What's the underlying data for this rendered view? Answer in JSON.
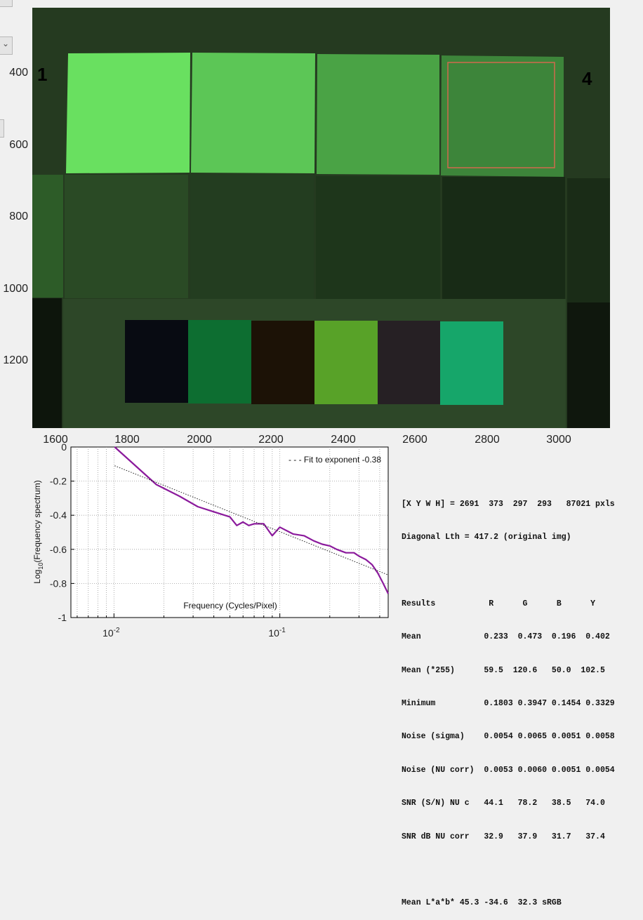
{
  "image_panel": {
    "y_ticks": [
      "400",
      "600",
      "800",
      "1000",
      "1200"
    ],
    "x_ticks": [
      "1600",
      "1800",
      "2000",
      "2200",
      "2400",
      "2600",
      "2800",
      "3000"
    ],
    "patch_label_left": "1",
    "patch_label_right": "4"
  },
  "spectrum_plot": {
    "ylabel_main": "Log",
    "ylabel_sub": "10",
    "ylabel_rest": "(Frequency spectrum)",
    "xlabel": "Frequency (Cycles/Pixel)",
    "legend": "- - - Fit to exponent -0.38",
    "y_ticks": [
      "0",
      "-0.2",
      "-0.4",
      "-0.6",
      "-0.8",
      "-1"
    ],
    "x_tick_base": "10",
    "x_tick_exps": [
      "-2",
      "-1"
    ],
    "line_color": "#8b1a9c"
  },
  "chart_data": {
    "type": "line",
    "xscale": "log",
    "xlim": [
      0.0055,
      0.45
    ],
    "ylim": [
      -1,
      0
    ],
    "xlabel": "Frequency (Cycles/Pixel)",
    "ylabel": "Log10(Frequency spectrum)",
    "grid": true,
    "legend": "top-right",
    "series": [
      {
        "x": [
          0.0101,
          0.018,
          0.025,
          0.032,
          0.04,
          0.05,
          0.055,
          0.06,
          0.065,
          0.07,
          0.08,
          0.09,
          0.1,
          0.12,
          0.14,
          0.16,
          0.18,
          0.2,
          0.22,
          0.25,
          0.28,
          0.3,
          0.33,
          0.36,
          0.39,
          0.42,
          0.45
        ],
        "y": [
          0,
          -0.22,
          -0.29,
          -0.35,
          -0.38,
          -0.41,
          -0.46,
          -0.44,
          -0.46,
          -0.45,
          -0.45,
          -0.52,
          -0.47,
          -0.51,
          -0.52,
          -0.55,
          -0.57,
          -0.58,
          -0.6,
          -0.62,
          -0.62,
          -0.64,
          -0.66,
          -0.69,
          -0.74,
          -0.8,
          -0.86
        ]
      },
      {
        "name": "Fit to exponent -0.38",
        "x": [
          0.0101,
          0.45
        ],
        "y": [
          -0.11,
          -0.75
        ]
      }
    ]
  },
  "results": {
    "lines": [
      "[X Y W H] = 2691  373  297  293   87021 pxls",
      "Diagonal Lth = 417.2 (original img)",
      "",
      "Results           R      G      B      Y",
      "Mean             0.233  0.473  0.196  0.402",
      "Mean (*255)      59.5  120.6   50.0  102.5",
      "Minimum          0.1803 0.3947 0.1454 0.3329",
      "Noise (sigma)    0.0054 0.0065 0.0051 0.0058",
      "Noise (NU corr)  0.0053 0.0060 0.0051 0.0054",
      "SNR (S/N) NU c   44.1   78.2   38.5   74.0",
      "SNR dB NU corr   32.9   37.9   31.7   37.4",
      "",
      "Mean L*a*b* 45.3 -34.6  32.3 sRGB"
    ]
  },
  "colors": {
    "background": "#f0f0f0",
    "image_bg": "#253a20",
    "roi_box": "#d06a4c",
    "bright_patches": [
      "#69e060",
      "#5cc656",
      "#4aa345",
      "#3d853a"
    ],
    "mid_patches": [
      "#2d5c28",
      "#2a4a25",
      "#233d20",
      "#1e361b",
      "#182b16",
      "#1a2c17"
    ],
    "bottom_patches": [
      "#080b12",
      "#0d6e31",
      "#1c1206",
      "#58a228",
      "#262024",
      "#16a66a"
    ]
  }
}
